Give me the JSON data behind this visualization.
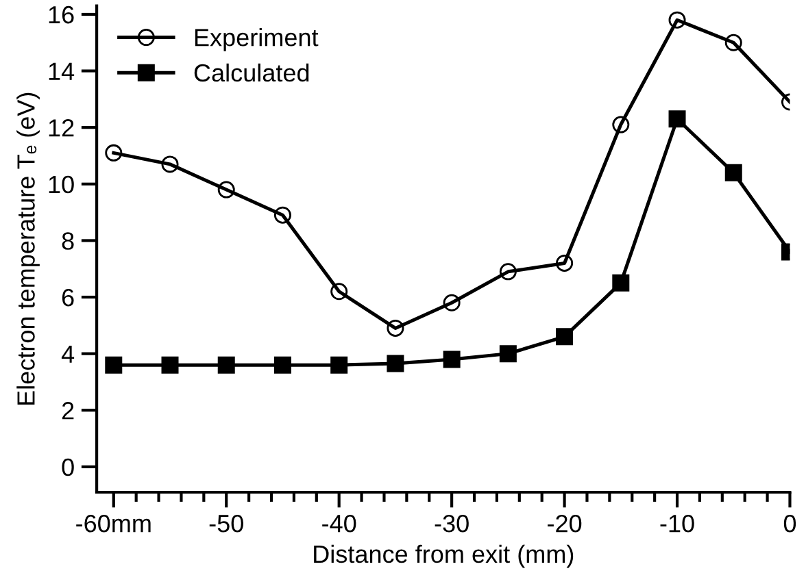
{
  "chart_data": {
    "type": "line",
    "xlabel": "Distance from exit (mm)",
    "ylabel": "Electron temperature Tₑ (eV)",
    "x": [
      -60,
      -55,
      -50,
      -45,
      -40,
      -35,
      -30,
      -25,
      -20,
      -15,
      -10,
      -5,
      0
    ],
    "series": [
      {
        "name": "Experiment",
        "color": "#000000",
        "marker": "circle",
        "values": [
          11.1,
          10.7,
          9.8,
          8.9,
          6.2,
          4.9,
          5.8,
          6.9,
          7.2,
          12.1,
          15.8,
          15.0,
          12.9
        ]
      },
      {
        "name": "Calculated",
        "color": "#000000",
        "marker": "square",
        "values": [
          3.6,
          3.6,
          3.6,
          3.6,
          3.6,
          3.65,
          3.8,
          4.0,
          4.6,
          6.5,
          12.3,
          10.4,
          7.6
        ]
      }
    ],
    "xlim": [
      -61.5,
      0
    ],
    "ylim": [
      -0.9,
      16.3
    ],
    "xticks": [
      {
        "value": -60,
        "label": "-60mm"
      },
      {
        "value": -58,
        "label": null
      },
      {
        "value": -56,
        "label": null
      },
      {
        "value": -54,
        "label": null
      },
      {
        "value": -52,
        "label": null
      },
      -50,
      {
        "value": -48,
        "label": null
      },
      {
        "value": -46,
        "label": null
      },
      {
        "value": -44,
        "label": null
      },
      {
        "value": -42,
        "label": null
      },
      -40,
      {
        "value": -38,
        "label": null
      },
      {
        "value": -36,
        "label": null
      },
      {
        "value": -34,
        "label": null
      },
      {
        "value": -32,
        "label": null
      },
      -30,
      {
        "value": -28,
        "label": null
      },
      {
        "value": -26,
        "label": null
      },
      {
        "value": -24,
        "label": null
      },
      {
        "value": -22,
        "label": null
      },
      -20,
      {
        "value": -18,
        "label": null
      },
      {
        "value": -16,
        "label": null
      },
      {
        "value": -14,
        "label": null
      },
      {
        "value": -12,
        "label": null
      },
      -10,
      {
        "value": -8,
        "label": null
      },
      {
        "value": -6,
        "label": null
      },
      {
        "value": -4,
        "label": null
      },
      {
        "value": -2,
        "label": null
      },
      0
    ],
    "yticks": [
      0,
      2,
      4,
      6,
      8,
      10,
      12,
      14,
      16
    ],
    "grid": false,
    "legend": "top left",
    "line_style": "solid"
  }
}
